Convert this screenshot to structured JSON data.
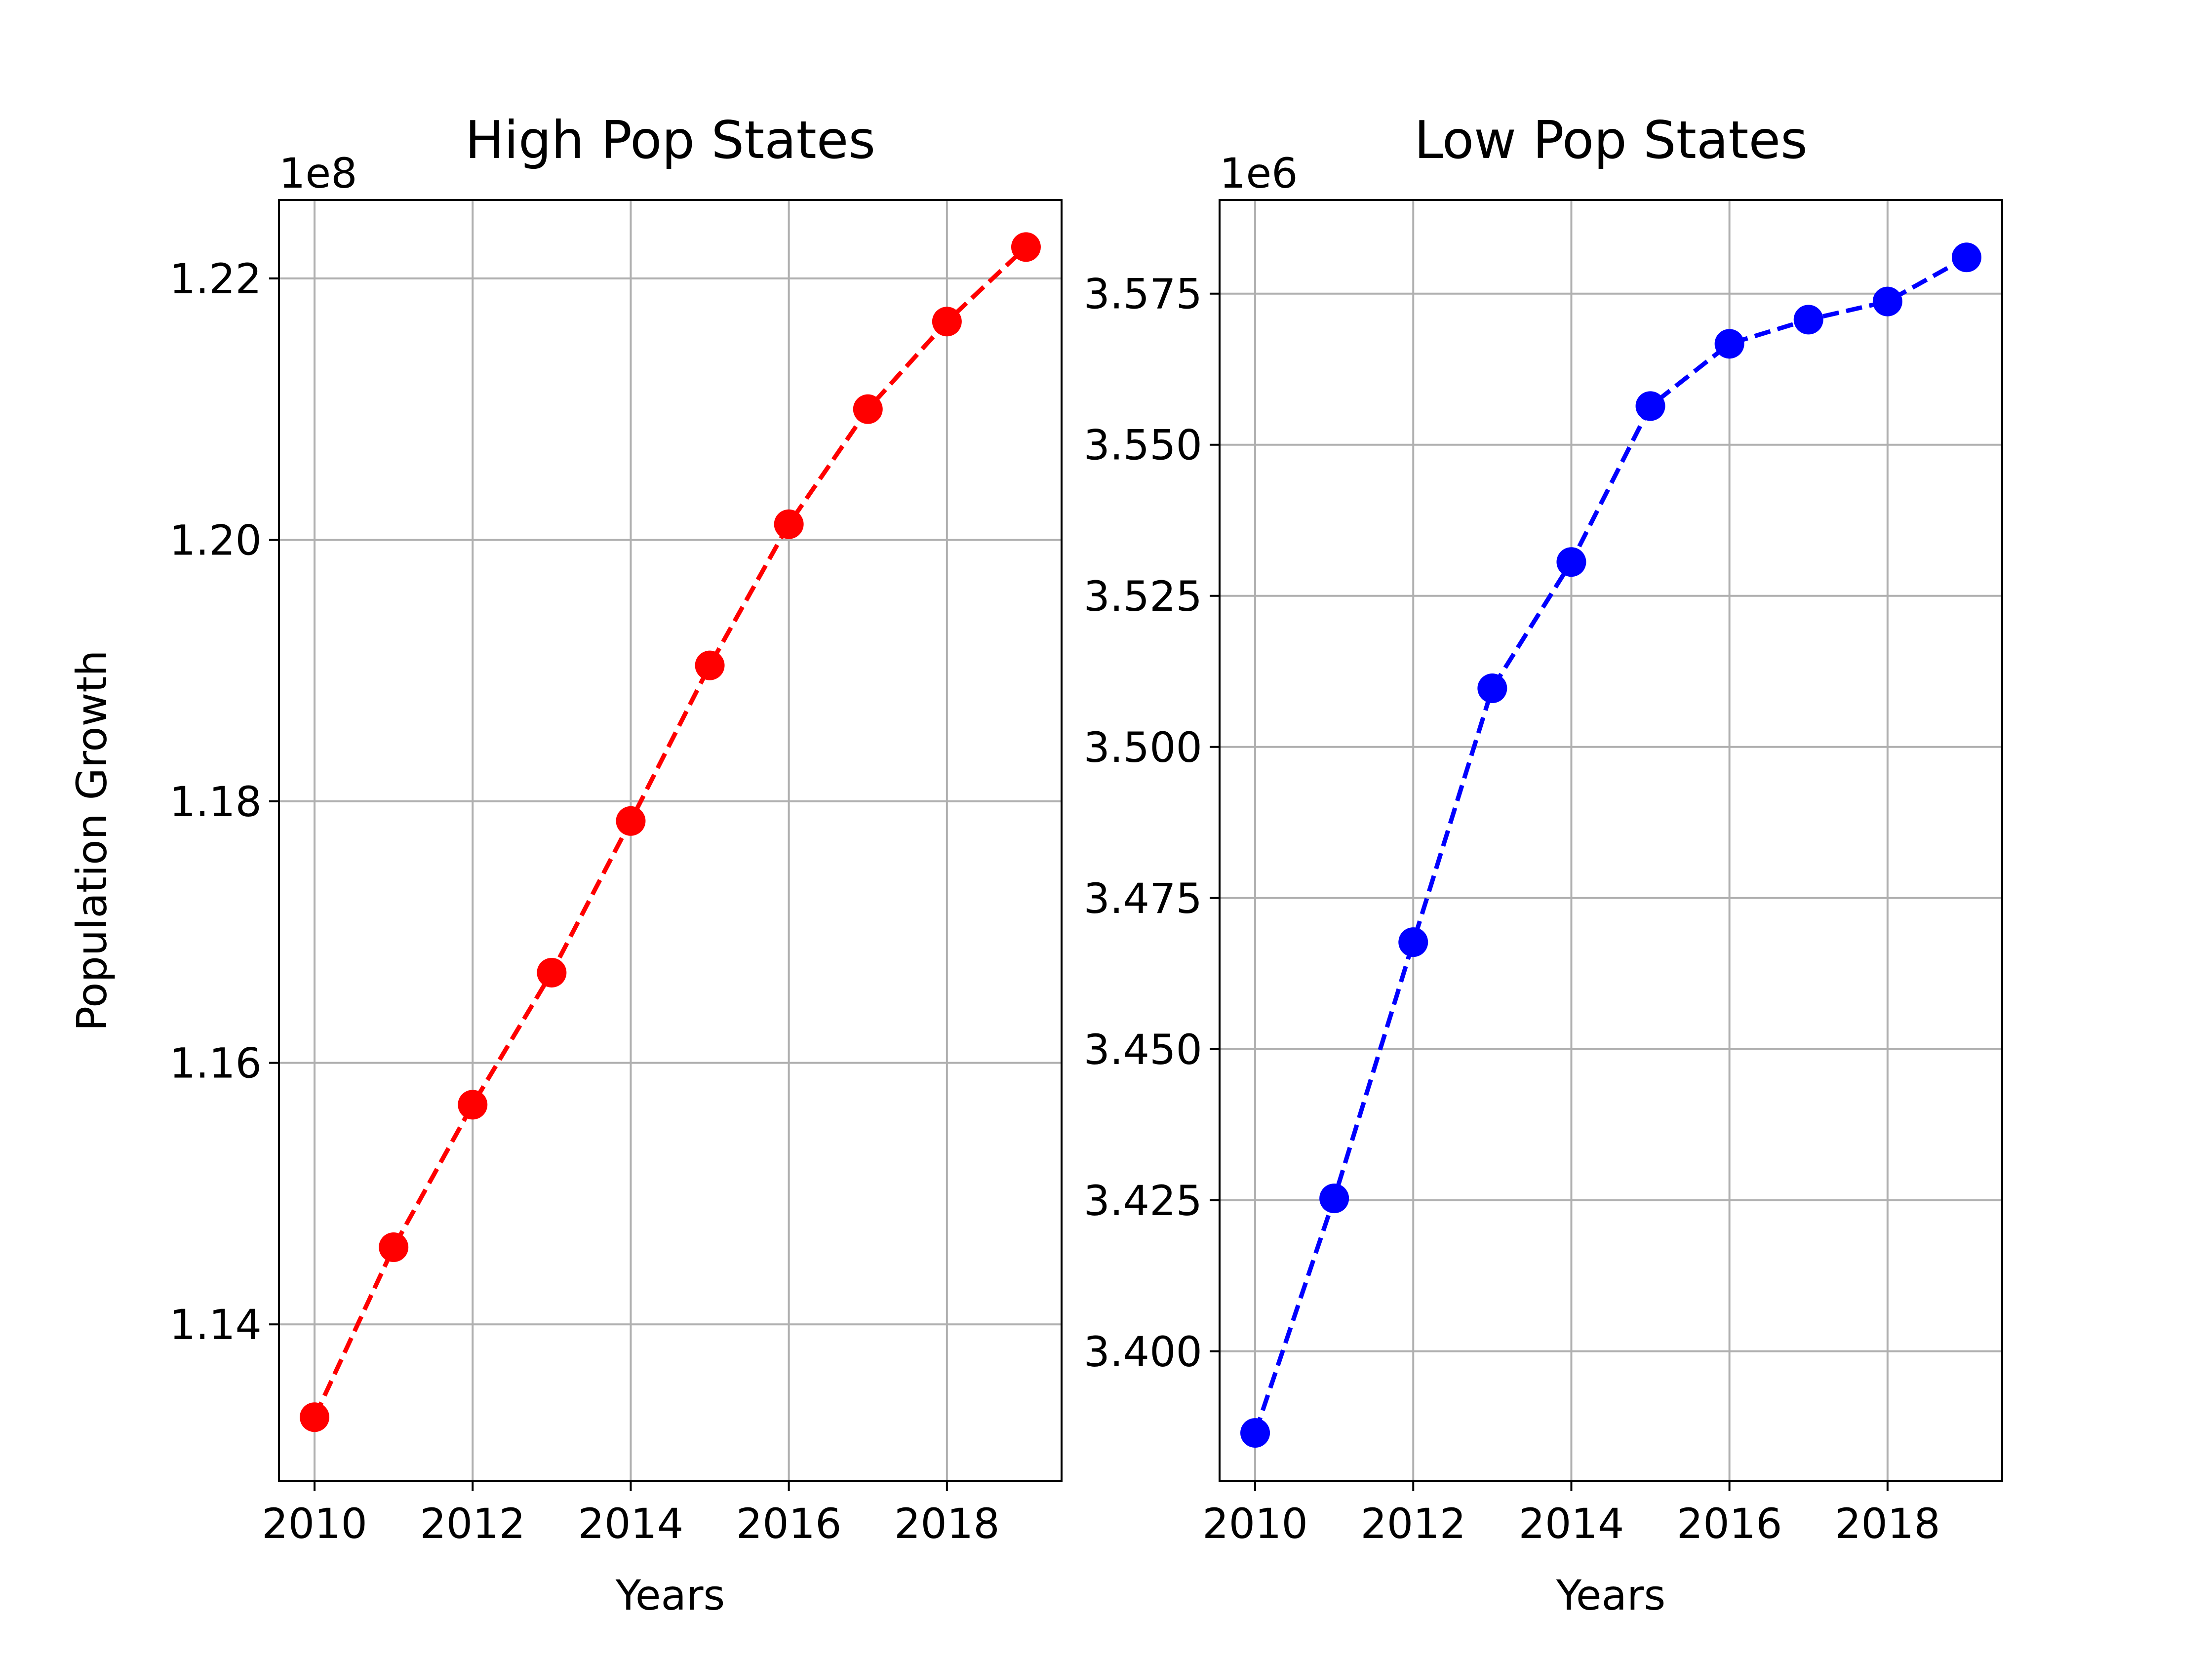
{
  "chart_data": [
    {
      "type": "line",
      "title": "High Pop States",
      "xlabel": "Years",
      "ylabel": "Population Growth",
      "offset_label": "1e8",
      "xlim": [
        2009.55,
        2019.45
      ],
      "ylim": [
        112.8,
        122.6
      ],
      "y_scale_note": "values in units of 1e6; axis offset 1e8",
      "xticks": [
        2010,
        2012,
        2014,
        2016,
        2018
      ],
      "xtick_labels": [
        "2010",
        "2012",
        "2014",
        "2016",
        "2018"
      ],
      "yticks": [
        114,
        116,
        118,
        120,
        122
      ],
      "ytick_labels": [
        "1.14",
        "1.16",
        "1.18",
        "1.20",
        "1.22"
      ],
      "grid": true,
      "series": [
        {
          "color": "#ff0000",
          "linestyle": "dashed",
          "marker": "circle",
          "x": [
            2010,
            2011,
            2012,
            2013,
            2014,
            2015,
            2016,
            2017,
            2018,
            2019
          ],
          "y": [
            113.29,
            114.59,
            115.68,
            116.69,
            117.85,
            119.04,
            120.12,
            121.0,
            121.67,
            122.24
          ]
        }
      ]
    },
    {
      "type": "line",
      "title": "Low Pop States",
      "xlabel": "Years",
      "ylabel": "",
      "offset_label": "1e6",
      "xlim": [
        2009.55,
        2019.45
      ],
      "ylim": [
        3.3785,
        3.5905
      ],
      "xticks": [
        2010,
        2012,
        2014,
        2016,
        2018
      ],
      "xtick_labels": [
        "2010",
        "2012",
        "2014",
        "2016",
        "2018"
      ],
      "yticks": [
        3.4,
        3.425,
        3.45,
        3.475,
        3.5,
        3.525,
        3.55,
        3.575
      ],
      "ytick_labels": [
        "3.400",
        "3.425",
        "3.450",
        "3.475",
        "3.500",
        "3.525",
        "3.550",
        "3.575"
      ],
      "grid": true,
      "series": [
        {
          "color": "#0000ff",
          "linestyle": "dashed",
          "marker": "circle",
          "x": [
            2010,
            2011,
            2012,
            2013,
            2014,
            2015,
            2016,
            2017,
            2018,
            2019
          ],
          "y": [
            3.3865,
            3.4253,
            3.4677,
            3.5097,
            3.5306,
            3.5564,
            3.5667,
            3.5707,
            3.5737,
            3.581
          ]
        }
      ]
    }
  ]
}
